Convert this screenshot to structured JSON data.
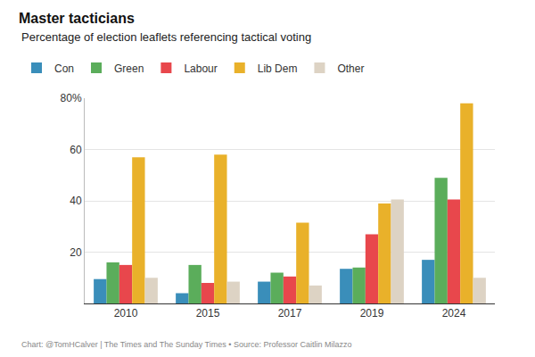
{
  "chart_data": {
    "type": "bar",
    "title": "Master tacticians",
    "subtitle": "Percentage of election leaflets referencing tactical voting",
    "footer": "Chart: @TomHCalver | The Times and The Sunday Times • Source: Professor Caitlin Milazzo",
    "categories": [
      "2010",
      "2015",
      "2017",
      "2019",
      "2024"
    ],
    "series": [
      {
        "name": "Con",
        "color": "#3a8eba",
        "values": [
          9.5,
          4,
          8.5,
          13.5,
          17
        ]
      },
      {
        "name": "Green",
        "color": "#5bad5b",
        "values": [
          16,
          15,
          12,
          14,
          49
        ]
      },
      {
        "name": "Labour",
        "color": "#e8474c",
        "values": [
          15,
          8,
          10.5,
          27,
          40.5
        ]
      },
      {
        "name": "Lib Dem",
        "color": "#e9b12a",
        "values": [
          57,
          58,
          31.5,
          39,
          78
        ]
      },
      {
        "name": "Other",
        "color": "#ddd3c4",
        "values": [
          10,
          8.5,
          7,
          40.5,
          10
        ]
      }
    ],
    "ylim": [
      0,
      80
    ],
    "yticks": [
      20,
      40,
      60,
      {
        "value": 80,
        "label": "80%"
      }
    ],
    "grid": true,
    "legend": "top-left"
  }
}
